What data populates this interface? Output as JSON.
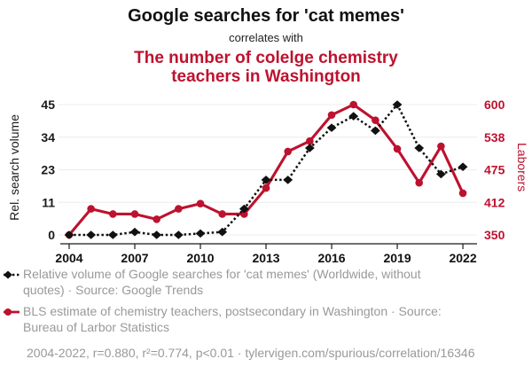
{
  "header": {
    "title": "Google searches for 'cat memes'",
    "subtitle": "correlates with",
    "red_title": "The number of colelge chemistry teachers in Washington"
  },
  "colors": {
    "accent_red": "#bd122f",
    "series_black": "#111111",
    "text_gray": "#999999",
    "gridline": "#ececec",
    "axis": "#1a1a1a"
  },
  "chart_data": {
    "type": "line",
    "x": [
      2004,
      2005,
      2006,
      2007,
      2008,
      2009,
      2010,
      2011,
      2012,
      2013,
      2014,
      2015,
      2016,
      2017,
      2018,
      2019,
      2020,
      2021,
      2022
    ],
    "x_ticks": [
      "2004",
      "2007",
      "2010",
      "2013",
      "2016",
      "2019",
      "2022"
    ],
    "series": [
      {
        "name": "Relative volume of Google searches for 'cat memes'",
        "axis": "left",
        "color": "#111111",
        "style": "dashed-diamond",
        "values": [
          0,
          0,
          0,
          1,
          0,
          0,
          0.5,
          1,
          9,
          19,
          19,
          30,
          37,
          41,
          36,
          45,
          30,
          21,
          23.5
        ]
      },
      {
        "name": "BLS estimate of chemistry teachers, postsecondary in Washington",
        "axis": "right",
        "color": "#bd122f",
        "style": "solid-circle",
        "values": [
          350,
          400,
          390,
          390,
          380,
          400,
          410,
          390,
          390,
          440,
          510,
          530,
          580,
          600,
          570,
          515,
          450,
          520,
          430
        ]
      }
    ],
    "left_axis": {
      "label": "Rel. search volume",
      "min": 0,
      "max": 45,
      "ticks": [
        "0",
        "11",
        "23",
        "34",
        "45"
      ]
    },
    "right_axis": {
      "label": "Laborers",
      "min": 350,
      "max": 600,
      "ticks": [
        "350",
        "412",
        "475",
        "538",
        "600"
      ]
    },
    "grid": true,
    "legend_position": "bottom"
  },
  "legend": {
    "items": [
      {
        "label": "Relative volume of Google searches for 'cat memes' (Worldwide, without quotes) · Source: Google Trends"
      },
      {
        "label": "BLS estimate of chemistry teachers, postsecondary in Washington · Source: Bureau of Larbor Statistics"
      }
    ],
    "footer": "2004-2022, r=0.880, r²=0.774, p<0.01 · tylervigen.com/spurious/correlation/16346"
  }
}
